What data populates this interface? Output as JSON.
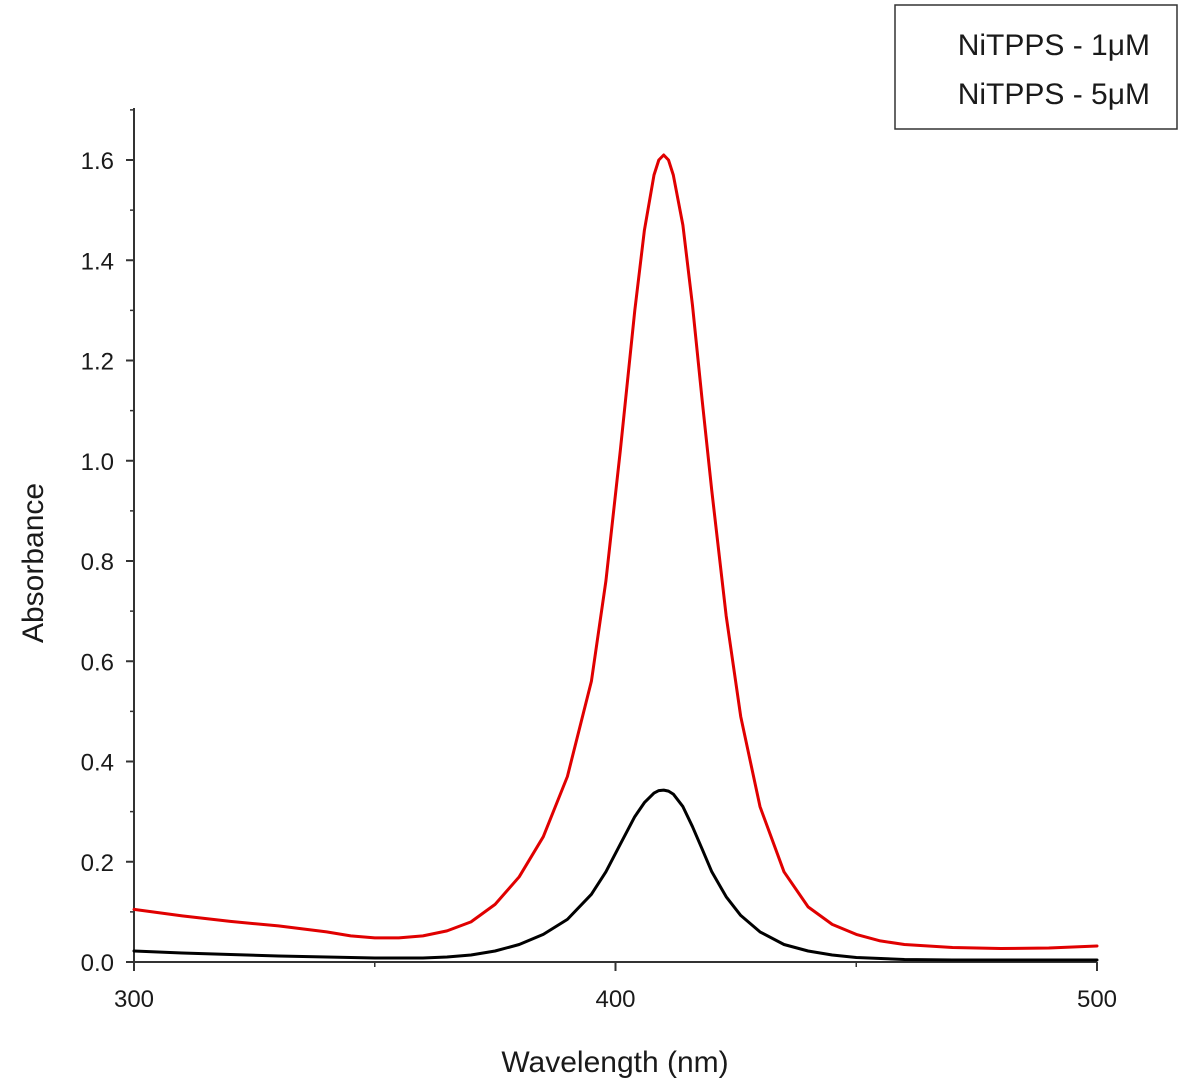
{
  "chart_data": {
    "type": "line",
    "title": "",
    "xlabel": "Wavelength (nm)",
    "ylabel": "Absorbance",
    "xlim": [
      300,
      500
    ],
    "ylim": [
      0.0,
      1.7
    ],
    "x_ticks": [
      300,
      400,
      500
    ],
    "x_tick_labels": [
      "300",
      "400",
      "500"
    ],
    "y_ticks": [
      0.0,
      0.2,
      0.4,
      0.6,
      0.8,
      1.0,
      1.2,
      1.4,
      1.6
    ],
    "y_tick_labels": [
      "0.0",
      "0.2",
      "0.4",
      "0.6",
      "0.8",
      "1.0",
      "1.2",
      "1.4",
      "1.6"
    ],
    "grid": false,
    "legend_position": "top-right",
    "series": [
      {
        "name": "NiTPPS - 1μM",
        "color": "#000000",
        "x": [
          300,
          310,
          320,
          330,
          340,
          350,
          360,
          365,
          370,
          375,
          380,
          385,
          390,
          395,
          398,
          401,
          404,
          406,
          408,
          409,
          410,
          411,
          412,
          414,
          416,
          418,
          420,
          423,
          426,
          430,
          435,
          440,
          445,
          450,
          460,
          470,
          480,
          490,
          500
        ],
        "y": [
          0.022,
          0.018,
          0.015,
          0.012,
          0.01,
          0.008,
          0.008,
          0.01,
          0.014,
          0.022,
          0.035,
          0.055,
          0.085,
          0.135,
          0.18,
          0.235,
          0.29,
          0.318,
          0.337,
          0.342,
          0.343,
          0.341,
          0.335,
          0.31,
          0.27,
          0.225,
          0.18,
          0.13,
          0.093,
          0.06,
          0.035,
          0.022,
          0.014,
          0.009,
          0.005,
          0.004,
          0.004,
          0.004,
          0.004
        ]
      },
      {
        "name": "NiTPPS - 5μM",
        "color": "#e00000",
        "x": [
          300,
          310,
          320,
          330,
          340,
          345,
          350,
          355,
          360,
          365,
          370,
          375,
          380,
          385,
          390,
          395,
          398,
          401,
          404,
          406,
          408,
          409,
          410,
          411,
          412,
          414,
          416,
          418,
          420,
          423,
          426,
          430,
          435,
          440,
          445,
          450,
          455,
          460,
          470,
          480,
          490,
          500
        ],
        "y": [
          0.105,
          0.092,
          0.081,
          0.072,
          0.06,
          0.052,
          0.048,
          0.048,
          0.052,
          0.062,
          0.08,
          0.115,
          0.17,
          0.25,
          0.37,
          0.56,
          0.76,
          1.02,
          1.3,
          1.46,
          1.57,
          1.6,
          1.61,
          1.6,
          1.57,
          1.47,
          1.31,
          1.12,
          0.94,
          0.69,
          0.49,
          0.31,
          0.18,
          0.11,
          0.075,
          0.055,
          0.042,
          0.035,
          0.029,
          0.027,
          0.028,
          0.032
        ]
      }
    ]
  }
}
